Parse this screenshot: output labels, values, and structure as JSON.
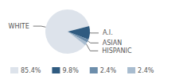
{
  "chart_data": {
    "type": "pie",
    "categories": [
      "WHITE",
      "A.I.",
      "ASIAN",
      "HISPANIC"
    ],
    "values": [
      85.4,
      9.8,
      2.4,
      2.4
    ],
    "value_labels": [
      "85.4%",
      "9.8%",
      "2.4%",
      "2.4%"
    ],
    "colors": [
      "#dde3eb",
      "#2f5b80",
      "#6d8eab",
      "#a8bccf"
    ],
    "legend": "bottom"
  }
}
